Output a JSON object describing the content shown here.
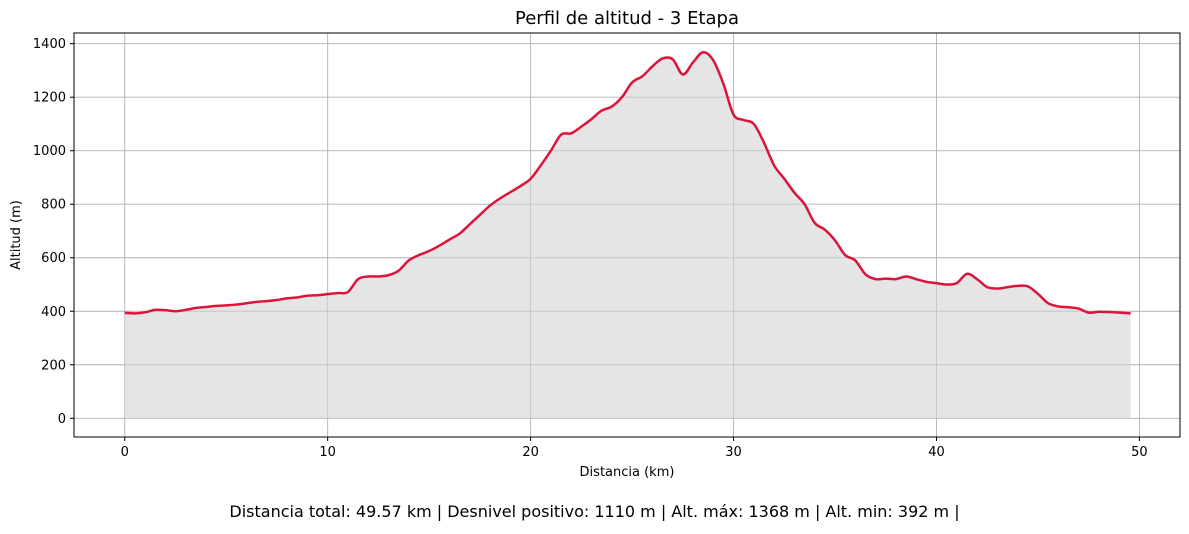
{
  "chart_data": {
    "type": "area",
    "title": "Perfil de altitud - 3 Etapa",
    "xlabel": "Distancia (km)",
    "ylabel": "Altitud (m)",
    "xlim": [
      -2.5,
      52
    ],
    "ylim": [
      -70,
      1440
    ],
    "xticks": [
      0,
      10,
      20,
      30,
      40,
      50
    ],
    "yticks": [
      0,
      200,
      400,
      600,
      800,
      1000,
      1200,
      1400
    ],
    "grid": true,
    "colors": {
      "line": "#dc143c",
      "fill": "#d3d3d3"
    },
    "x": [
      0,
      0.5,
      1,
      1.5,
      2,
      2.5,
      3,
      3.5,
      4,
      4.5,
      5,
      5.5,
      6,
      6.5,
      7,
      7.5,
      8,
      8.5,
      9,
      9.5,
      10,
      10.5,
      11,
      11.5,
      12,
      12.5,
      13,
      13.5,
      14,
      14.5,
      15,
      15.5,
      16,
      16.5,
      17,
      17.5,
      18,
      18.5,
      19,
      19.5,
      20,
      20.5,
      21,
      21.5,
      22,
      22.5,
      23,
      23.5,
      24,
      24.5,
      25,
      25.5,
      26,
      26.5,
      27,
      27.5,
      28,
      28.5,
      29,
      29.5,
      30,
      30.5,
      31,
      31.5,
      32,
      32.5,
      33,
      33.5,
      34,
      34.5,
      35,
      35.5,
      36,
      36.5,
      37,
      37.5,
      38,
      38.5,
      39,
      39.5,
      40,
      40.5,
      41,
      41.5,
      42,
      42.5,
      43,
      43.5,
      44,
      44.5,
      45,
      45.5,
      46,
      46.5,
      47,
      47.5,
      48,
      48.5,
      49,
      49.57
    ],
    "y": [
      394,
      392,
      396,
      405,
      404,
      400,
      405,
      412,
      416,
      420,
      422,
      425,
      430,
      435,
      438,
      442,
      448,
      452,
      458,
      460,
      464,
      468,
      472,
      520,
      530,
      530,
      535,
      552,
      590,
      610,
      625,
      645,
      668,
      690,
      725,
      760,
      795,
      822,
      845,
      868,
      895,
      945,
      1000,
      1060,
      1065,
      1090,
      1118,
      1150,
      1165,
      1200,
      1255,
      1278,
      1315,
      1345,
      1342,
      1285,
      1330,
      1368,
      1338,
      1250,
      1135,
      1115,
      1100,
      1030,
      945,
      895,
      843,
      800,
      730,
      705,
      665,
      610,
      590,
      538,
      520,
      522,
      520,
      530,
      520,
      510,
      505,
      500,
      505,
      540,
      520,
      490,
      485,
      490,
      495,
      493,
      465,
      430,
      418,
      415,
      410,
      395,
      398,
      397,
      395,
      392
    ]
  },
  "summary": "Distancia total: 49.57 km | Desnivel positivo: 1110 m | Alt. máx: 1368 m | Alt. min: 392 m |"
}
